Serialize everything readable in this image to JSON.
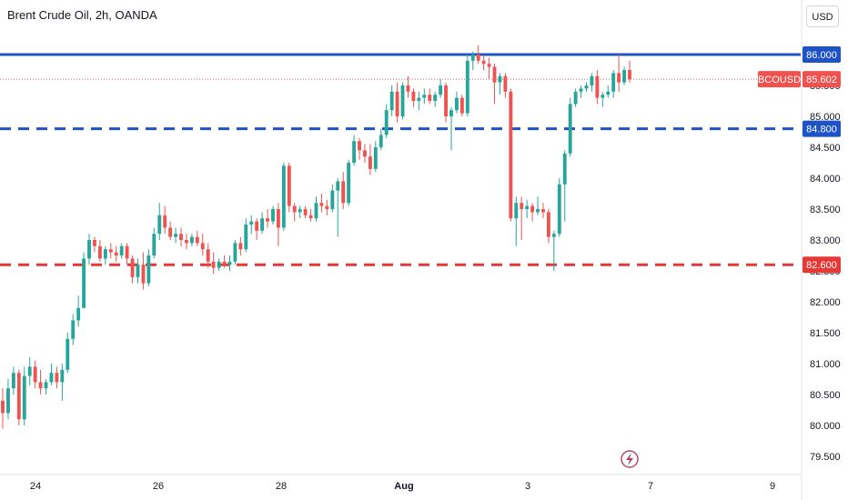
{
  "header": {
    "title": "Brent Crude Oil, 2h, OANDA",
    "currency_button": "USD"
  },
  "colors": {
    "up": "#26a69a",
    "down": "#ef5350",
    "resistance": "#1e53c7",
    "support": "#e53935",
    "symbol_tag": "#ef5350"
  },
  "icons": {
    "flash": "lightning-icon"
  },
  "chart_data": {
    "type": "candlestick",
    "title": "Brent Crude Oil, 2h, OANDA",
    "symbol": "BCOUSD",
    "last_price": 85.602,
    "ylim": [
      79.4,
      86.6
    ],
    "y_ticks": [
      "79.500",
      "80.000",
      "80.500",
      "81.000",
      "81.500",
      "82.000",
      "82.500",
      "83.000",
      "83.500",
      "84.000",
      "84.500",
      "85.000",
      "85.500"
    ],
    "x_ticks": [
      "24",
      "26",
      "28",
      "Aug",
      "3",
      "7",
      "9"
    ],
    "levels": [
      {
        "value": 86.0,
        "label": "86.000",
        "style": "solid",
        "color": "#1e53c7"
      },
      {
        "value": 84.8,
        "label": "84.800",
        "style": "dashed",
        "color": "#1e53c7"
      },
      {
        "value": 82.6,
        "label": "82.600",
        "style": "dashed",
        "color": "#e53935"
      }
    ],
    "candles": [
      [
        80.4,
        80.6,
        79.95,
        80.2
      ],
      [
        80.2,
        80.75,
        80.1,
        80.6
      ],
      [
        80.6,
        80.95,
        80.5,
        80.85
      ],
      [
        80.85,
        80.9,
        80.0,
        80.1
      ],
      [
        80.1,
        80.95,
        80.0,
        80.8
      ],
      [
        80.8,
        81.1,
        80.65,
        80.95
      ],
      [
        80.95,
        81.05,
        80.6,
        80.7
      ],
      [
        80.7,
        80.9,
        80.5,
        80.6
      ],
      [
        80.6,
        80.75,
        80.5,
        80.7
      ],
      [
        80.7,
        81.0,
        80.65,
        80.85
      ],
      [
        80.85,
        80.95,
        80.6,
        80.7
      ],
      [
        80.7,
        81.0,
        80.4,
        80.9
      ],
      [
        80.9,
        81.5,
        80.85,
        81.4
      ],
      [
        81.4,
        81.8,
        81.3,
        81.7
      ],
      [
        81.7,
        82.1,
        81.6,
        81.9
      ],
      [
        81.9,
        82.8,
        81.9,
        82.7
      ],
      [
        82.7,
        83.1,
        82.6,
        83.0
      ],
      [
        83.0,
        83.05,
        82.8,
        82.9
      ],
      [
        82.9,
        83.0,
        82.65,
        82.7
      ],
      [
        82.7,
        82.9,
        82.6,
        82.85
      ],
      [
        82.85,
        82.95,
        82.7,
        82.8
      ],
      [
        82.8,
        82.9,
        82.65,
        82.75
      ],
      [
        82.75,
        82.95,
        82.7,
        82.9
      ],
      [
        82.9,
        82.95,
        82.6,
        82.7
      ],
      [
        82.7,
        82.75,
        82.3,
        82.4
      ],
      [
        82.4,
        82.7,
        82.3,
        82.6
      ],
      [
        82.6,
        82.8,
        82.2,
        82.3
      ],
      [
        82.3,
        82.85,
        82.25,
        82.75
      ],
      [
        82.75,
        83.2,
        82.7,
        83.1
      ],
      [
        83.1,
        83.6,
        83.0,
        83.4
      ],
      [
        83.4,
        83.55,
        83.1,
        83.2
      ],
      [
        83.2,
        83.3,
        83.0,
        83.05
      ],
      [
        83.05,
        83.2,
        82.95,
        83.1
      ],
      [
        83.1,
        83.2,
        82.9,
        83.0
      ],
      [
        83.0,
        83.1,
        82.85,
        82.95
      ],
      [
        82.95,
        83.1,
        82.9,
        83.05
      ],
      [
        83.05,
        83.15,
        82.9,
        82.95
      ],
      [
        82.95,
        83.1,
        82.75,
        82.85
      ],
      [
        82.85,
        82.95,
        82.55,
        82.65
      ],
      [
        82.65,
        82.8,
        82.45,
        82.55
      ],
      [
        82.55,
        82.7,
        82.5,
        82.65
      ],
      [
        82.65,
        82.75,
        82.55,
        82.6
      ],
      [
        82.6,
        82.75,
        82.5,
        82.65
      ],
      [
        82.65,
        83.0,
        82.6,
        82.95
      ],
      [
        82.95,
        83.05,
        82.75,
        82.85
      ],
      [
        82.85,
        83.35,
        82.8,
        83.25
      ],
      [
        83.25,
        83.4,
        83.1,
        83.3
      ],
      [
        83.3,
        83.35,
        83.0,
        83.15
      ],
      [
        83.15,
        83.45,
        83.1,
        83.35
      ],
      [
        83.35,
        83.5,
        83.2,
        83.3
      ],
      [
        83.3,
        83.55,
        83.25,
        83.5
      ],
      [
        83.5,
        83.6,
        82.9,
        83.2
      ],
      [
        83.2,
        84.25,
        83.15,
        84.2
      ],
      [
        84.2,
        84.25,
        83.45,
        83.55
      ],
      [
        83.55,
        83.6,
        83.3,
        83.45
      ],
      [
        83.45,
        83.55,
        83.35,
        83.5
      ],
      [
        83.5,
        83.55,
        83.35,
        83.4
      ],
      [
        83.4,
        83.5,
        83.3,
        83.35
      ],
      [
        83.35,
        83.7,
        83.3,
        83.6
      ],
      [
        83.6,
        83.75,
        83.45,
        83.55
      ],
      [
        83.55,
        83.65,
        83.4,
        83.5
      ],
      [
        83.5,
        83.9,
        83.45,
        83.8
      ],
      [
        83.8,
        84.0,
        83.05,
        83.95
      ],
      [
        83.95,
        84.1,
        83.5,
        83.6
      ],
      [
        83.6,
        84.3,
        83.55,
        84.25
      ],
      [
        84.25,
        84.7,
        84.2,
        84.6
      ],
      [
        84.6,
        84.65,
        84.3,
        84.45
      ],
      [
        84.45,
        84.55,
        84.25,
        84.35
      ],
      [
        84.35,
        84.55,
        84.05,
        84.15
      ],
      [
        84.15,
        84.6,
        84.1,
        84.5
      ],
      [
        84.5,
        84.8,
        84.45,
        84.7
      ],
      [
        84.7,
        85.2,
        84.65,
        85.1
      ],
      [
        85.1,
        85.5,
        85.0,
        85.4
      ],
      [
        85.4,
        85.55,
        84.9,
        85.0
      ],
      [
        85.0,
        85.55,
        84.95,
        85.5
      ],
      [
        85.5,
        85.65,
        85.3,
        85.4
      ],
      [
        85.4,
        85.45,
        85.15,
        85.25
      ],
      [
        85.25,
        85.4,
        85.1,
        85.3
      ],
      [
        85.3,
        85.45,
        85.2,
        85.35
      ],
      [
        85.35,
        85.45,
        85.2,
        85.25
      ],
      [
        85.25,
        85.4,
        85.15,
        85.35
      ],
      [
        85.35,
        85.6,
        85.3,
        85.5
      ],
      [
        85.5,
        85.55,
        84.9,
        85.0
      ],
      [
        85.0,
        85.15,
        84.45,
        85.1
      ],
      [
        85.1,
        85.4,
        85.05,
        85.3
      ],
      [
        85.3,
        85.35,
        85.0,
        85.05
      ],
      [
        85.05,
        86.0,
        85.0,
        85.9
      ],
      [
        85.9,
        86.05,
        85.75,
        86.0
      ],
      [
        86.0,
        86.15,
        85.85,
        85.9
      ],
      [
        85.9,
        86.0,
        85.75,
        85.85
      ],
      [
        85.85,
        85.95,
        85.6,
        85.8
      ],
      [
        85.8,
        85.85,
        85.2,
        85.55
      ],
      [
        85.55,
        85.7,
        85.35,
        85.65
      ],
      [
        85.65,
        85.7,
        85.3,
        85.4
      ],
      [
        85.4,
        85.45,
        83.3,
        83.35
      ],
      [
        83.35,
        83.7,
        82.9,
        83.6
      ],
      [
        83.6,
        83.7,
        83.0,
        83.5
      ],
      [
        83.5,
        83.65,
        83.35,
        83.55
      ],
      [
        83.55,
        83.6,
        83.3,
        83.45
      ],
      [
        83.45,
        83.7,
        83.4,
        83.5
      ],
      [
        83.5,
        83.6,
        83.35,
        83.45
      ],
      [
        83.45,
        83.5,
        82.95,
        83.05
      ],
      [
        83.05,
        83.15,
        82.5,
        83.1
      ],
      [
        83.1,
        84.0,
        83.05,
        83.9
      ],
      [
        83.9,
        84.45,
        83.3,
        84.4
      ],
      [
        84.4,
        85.3,
        84.35,
        85.2
      ],
      [
        85.2,
        85.45,
        85.15,
        85.4
      ],
      [
        85.4,
        85.5,
        85.3,
        85.45
      ],
      [
        85.45,
        85.55,
        85.4,
        85.5
      ],
      [
        85.5,
        85.7,
        85.4,
        85.65
      ],
      [
        85.65,
        85.75,
        85.2,
        85.3
      ],
      [
        85.3,
        85.4,
        85.15,
        85.35
      ],
      [
        85.35,
        85.5,
        85.3,
        85.4
      ],
      [
        85.4,
        85.75,
        85.3,
        85.7
      ],
      [
        85.7,
        86.0,
        85.4,
        85.55
      ],
      [
        85.55,
        85.8,
        85.5,
        85.75
      ],
      [
        85.75,
        85.9,
        85.55,
        85.6
      ]
    ]
  }
}
